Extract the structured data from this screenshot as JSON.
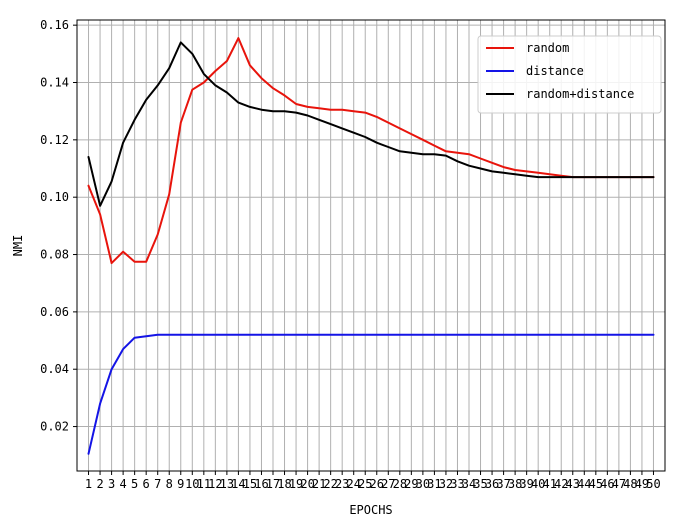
{
  "chart_data": {
    "type": "line",
    "xlabel": "EPOCHS",
    "ylabel": "NMI",
    "xlim": [
      0,
      51
    ],
    "ylim": [
      0.0045,
      0.1618
    ],
    "grid": true,
    "legend_position": "top-right",
    "x": [
      1,
      2,
      3,
      4,
      5,
      6,
      7,
      8,
      9,
      10,
      11,
      12,
      13,
      14,
      15,
      16,
      17,
      18,
      19,
      20,
      21,
      22,
      23,
      24,
      25,
      26,
      27,
      28,
      29,
      30,
      31,
      32,
      33,
      34,
      35,
      36,
      37,
      38,
      39,
      40,
      41,
      42,
      43,
      44,
      45,
      46,
      47,
      48,
      49,
      50
    ],
    "x_tick_labels": [
      "1",
      "2",
      "3",
      "4",
      "5",
      "6",
      "7",
      "8",
      "9",
      "10",
      "11",
      "12",
      "13",
      "14",
      "15",
      "16",
      "17",
      "18",
      "19",
      "20",
      "21",
      "22",
      "23",
      "24",
      "25",
      "26",
      "27",
      "28",
      "29",
      "30",
      "31",
      "32",
      "33",
      "34",
      "35",
      "36",
      "37",
      "38",
      "39",
      "40",
      "41",
      "42",
      "43",
      "44",
      "45",
      "46",
      "47",
      "48",
      "49",
      "50"
    ],
    "y_ticks": [
      0.02,
      0.04,
      0.06,
      0.08,
      0.1,
      0.12,
      0.14,
      0.16
    ],
    "y_tick_labels": [
      "0.02",
      "0.04",
      "0.06",
      "0.08",
      "0.10",
      "0.12",
      "0.14",
      "0.16"
    ],
    "series": [
      {
        "name": "random",
        "color": "#e8140c",
        "values": [
          0.104,
          0.094,
          0.077,
          0.081,
          0.0775,
          0.0775,
          0.087,
          0.101,
          0.126,
          0.1375,
          0.14,
          0.144,
          0.1475,
          0.1555,
          0.146,
          0.1415,
          0.138,
          0.1355,
          0.1325,
          0.1315,
          0.131,
          0.1305,
          0.1305,
          0.13,
          0.1295,
          0.128,
          0.126,
          0.124,
          0.122,
          0.12,
          0.118,
          0.116,
          0.1155,
          0.115,
          0.1135,
          0.112,
          0.1105,
          0.1095,
          0.109,
          0.1085,
          0.108,
          0.1075,
          0.107,
          0.107,
          0.107,
          0.107,
          0.107,
          0.107,
          0.107,
          0.107
        ]
      },
      {
        "name": "distance",
        "color": "#1414e6",
        "values": [
          0.0105,
          0.028,
          0.04,
          0.047,
          0.051,
          0.0515,
          0.052,
          0.052,
          0.052,
          0.052,
          0.052,
          0.052,
          0.052,
          0.052,
          0.052,
          0.052,
          0.052,
          0.052,
          0.052,
          0.052,
          0.052,
          0.052,
          0.052,
          0.052,
          0.052,
          0.052,
          0.052,
          0.052,
          0.052,
          0.052,
          0.052,
          0.052,
          0.052,
          0.052,
          0.052,
          0.052,
          0.052,
          0.052,
          0.052,
          0.052,
          0.052,
          0.052,
          0.052,
          0.052,
          0.052,
          0.052,
          0.052,
          0.052,
          0.052,
          0.052
        ]
      },
      {
        "name": "random+distance",
        "color": "#000000",
        "values": [
          0.114,
          0.097,
          0.1055,
          0.119,
          0.127,
          0.134,
          0.139,
          0.145,
          0.154,
          0.15,
          0.143,
          0.139,
          0.1365,
          0.133,
          0.1315,
          0.1305,
          0.13,
          0.13,
          0.1295,
          0.1285,
          0.127,
          0.1255,
          0.124,
          0.1225,
          0.121,
          0.119,
          0.1175,
          0.116,
          0.1155,
          0.115,
          0.115,
          0.1145,
          0.1125,
          0.111,
          0.11,
          0.109,
          0.1085,
          0.108,
          0.1075,
          0.107,
          0.107,
          0.107,
          0.107,
          0.107,
          0.107,
          0.107,
          0.107,
          0.107,
          0.107,
          0.107
        ]
      }
    ]
  }
}
